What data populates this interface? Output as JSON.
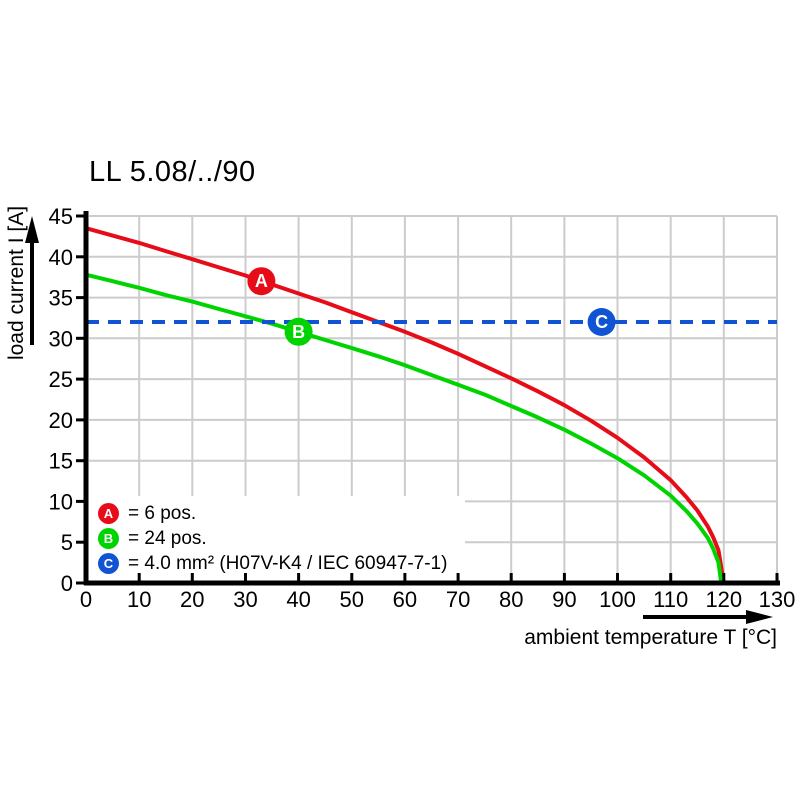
{
  "chart_data": {
    "type": "line",
    "title": "LL 5.08/../90",
    "xlabel": "ambient temperature T [°C]",
    "ylabel": "load current I [A]",
    "xlim": [
      0,
      130
    ],
    "ylim": [
      0,
      45
    ],
    "x_ticks": [
      0,
      10,
      20,
      30,
      40,
      50,
      60,
      70,
      80,
      90,
      100,
      110,
      120,
      130
    ],
    "y_ticks": [
      0,
      5,
      10,
      15,
      20,
      25,
      30,
      35,
      40,
      45
    ],
    "grid": true,
    "grid_color": "#cccccc",
    "legend_position": "bottom-left-inside",
    "series": [
      {
        "name": "A",
        "label": "= 6 pos.",
        "color": "#e60c18",
        "kind": "curve",
        "marker_at": [
          33,
          37.0
        ],
        "points": [
          [
            0,
            43.5
          ],
          [
            5,
            42.6
          ],
          [
            10,
            41.7
          ],
          [
            15,
            40.7
          ],
          [
            20,
            39.7
          ],
          [
            25,
            38.7
          ],
          [
            30,
            37.7
          ],
          [
            35,
            36.6
          ],
          [
            40,
            35.5
          ],
          [
            45,
            34.4
          ],
          [
            50,
            33.2
          ],
          [
            55,
            32.0
          ],
          [
            60,
            30.8
          ],
          [
            65,
            29.5
          ],
          [
            70,
            28.1
          ],
          [
            75,
            26.6
          ],
          [
            80,
            25.1
          ],
          [
            85,
            23.5
          ],
          [
            90,
            21.8
          ],
          [
            95,
            19.9
          ],
          [
            100,
            17.8
          ],
          [
            105,
            15.4
          ],
          [
            110,
            12.6
          ],
          [
            113,
            10.5
          ],
          [
            115,
            8.9
          ],
          [
            117,
            6.9
          ],
          [
            118,
            5.6
          ],
          [
            119,
            4.0
          ],
          [
            120,
            0
          ]
        ]
      },
      {
        "name": "B",
        "label": "= 24 pos.",
        "color": "#00d400",
        "kind": "curve",
        "marker_at": [
          40,
          30.8
        ],
        "points": [
          [
            0,
            37.8
          ],
          [
            5,
            37.0
          ],
          [
            10,
            36.2
          ],
          [
            15,
            35.3
          ],
          [
            20,
            34.5
          ],
          [
            25,
            33.6
          ],
          [
            30,
            32.7
          ],
          [
            35,
            31.8
          ],
          [
            40,
            30.8
          ],
          [
            45,
            29.8
          ],
          [
            50,
            28.8
          ],
          [
            55,
            27.8
          ],
          [
            60,
            26.7
          ],
          [
            65,
            25.5
          ],
          [
            70,
            24.3
          ],
          [
            75,
            23.1
          ],
          [
            80,
            21.7
          ],
          [
            85,
            20.3
          ],
          [
            90,
            18.8
          ],
          [
            95,
            17.1
          ],
          [
            100,
            15.3
          ],
          [
            105,
            13.2
          ],
          [
            110,
            10.7
          ],
          [
            113,
            8.8
          ],
          [
            115,
            7.3
          ],
          [
            117,
            5.5
          ],
          [
            118,
            4.2
          ],
          [
            119,
            2.5
          ],
          [
            119.5,
            0
          ]
        ]
      },
      {
        "name": "C",
        "label": "= 4.0 mm² (H07V-K4 / IEC 60947-7-1)",
        "color": "#1053d3",
        "kind": "dashed-hline",
        "value": 32,
        "marker_at": [
          97,
          32
        ]
      }
    ]
  }
}
